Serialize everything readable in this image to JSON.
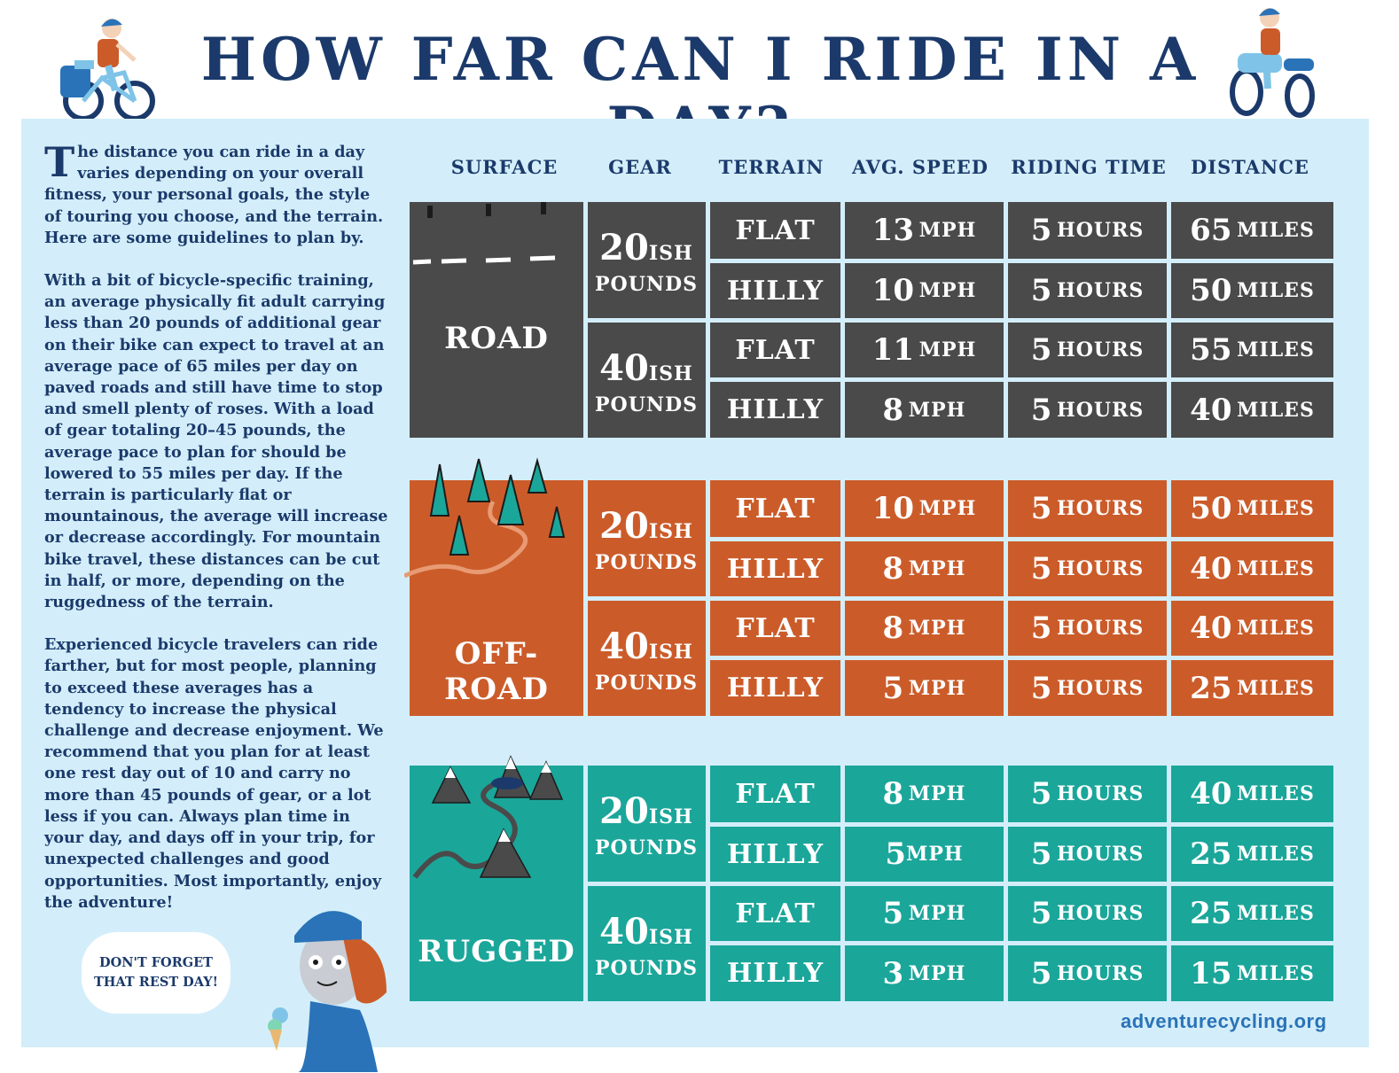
{
  "title": "HOW FAR CAN I RIDE IN A DAY?",
  "intro": {
    "dropcap": "T",
    "p1_rest": "he distance you can ride in a day varies depending on your overall fitness, your personal goals, the style of touring you choose, and the terrain. Here are some guidelines to plan by.",
    "p2": "With a bit of bicycle-specific training, an average physically fit adult carrying less than 20 pounds of additional gear on their bike can expect to travel at an average pace of 65 miles per day on paved roads and still have time to stop and smell plenty of roses. With a load of gear totaling 20–45 pounds, the average pace to plan for should be lowered to 55 miles per day. If the terrain is particularly flat or mountainous, the average will increase or decrease accordingly. For mountain bike travel, these distances can be cut in half, or more, depending on the ruggedness of the terrain.",
    "p3": "Experienced bicycle travelers can ride farther, but for most people, planning to exceed these averages has a tendency to increase the physical challenge and decrease enjoyment. We recommend that you plan for at least one rest day out of 10 and carry no more than 45 pounds of gear, or a lot less if you can. Always plan time in your day, and days off in your trip, for unexpected challenges and good opportunities. Most importantly, enjoy the adventure!"
  },
  "headers": {
    "surface": "SURFACE",
    "gear": "GEAR",
    "terrain": "TERRAIN",
    "speed": "AVG. SPEED",
    "time": "RIDING TIME",
    "distance": "DISTANCE"
  },
  "gear_labels": {
    "g20_num": "20",
    "g20_ish": "ISH",
    "g40_num": "40",
    "g40_ish": "ISH",
    "pounds": "POUNDS"
  },
  "surfaces": [
    {
      "name": "ROAD",
      "rows": [
        {
          "terrain": "FLAT",
          "speed_num": "13",
          "speed_unit": "MPH",
          "time_num": "5",
          "time_unit": "HOURS",
          "dist_num": "65",
          "dist_unit": "MILES"
        },
        {
          "terrain": "HILLY",
          "speed_num": "10",
          "speed_unit": "MPH",
          "time_num": "5",
          "time_unit": "HOURS",
          "dist_num": "50",
          "dist_unit": "MILES"
        },
        {
          "terrain": "FLAT",
          "speed_num": "11",
          "speed_unit": "MPH",
          "time_num": "5",
          "time_unit": "HOURS",
          "dist_num": "55",
          "dist_unit": "MILES"
        },
        {
          "terrain": "HILLY",
          "speed_num": "8",
          "speed_unit": "MPH",
          "time_num": "5",
          "time_unit": "HOURS",
          "dist_num": "40",
          "dist_unit": "MILES"
        }
      ]
    },
    {
      "name": "OFF-ROAD",
      "rows": [
        {
          "terrain": "FLAT",
          "speed_num": "10",
          "speed_unit": "MPH",
          "time_num": "5",
          "time_unit": "HOURS",
          "dist_num": "50",
          "dist_unit": "MILES"
        },
        {
          "terrain": "HILLY",
          "speed_num": "8",
          "speed_unit": "MPH",
          "time_num": "5",
          "time_unit": "HOURS",
          "dist_num": "40",
          "dist_unit": "MILES"
        },
        {
          "terrain": "FLAT",
          "speed_num": "8",
          "speed_unit": "MPH",
          "time_num": "5",
          "time_unit": "HOURS",
          "dist_num": "40",
          "dist_unit": "MILES"
        },
        {
          "terrain": "HILLY",
          "speed_num": "5",
          "speed_unit": "MPH",
          "time_num": "5",
          "time_unit": "HOURS",
          "dist_num": "25",
          "dist_unit": "MILES"
        }
      ]
    },
    {
      "name": "RUGGED",
      "rows": [
        {
          "terrain": "FLAT",
          "speed_num": "8",
          "speed_unit": "MPH",
          "time_num": "5",
          "time_unit": "HOURS",
          "dist_num": "40",
          "dist_unit": "MILES"
        },
        {
          "terrain": "HILLY",
          "speed_num": "5",
          "speed_unit": "MPH",
          "time_num": "5",
          "time_unit": "HOURS",
          "dist_num": "25",
          "dist_unit": "MILES"
        },
        {
          "terrain": "FLAT",
          "speed_num": "5",
          "speed_unit": "MPH",
          "time_num": "5",
          "time_unit": "HOURS",
          "dist_num": "25",
          "dist_unit": "MILES"
        },
        {
          "terrain": "HILLY",
          "speed_num": "3",
          "speed_unit": "MPH",
          "time_num": "5",
          "time_unit": "HOURS",
          "dist_num": "15",
          "dist_unit": "MILES"
        }
      ]
    }
  ],
  "speech_bubble": "DON'T FORGET THAT REST DAY!",
  "website": "adventurecycling.org",
  "colors": {
    "navy": "#1b3a6b",
    "panel": "#d3eefa",
    "road": "#4a4a4b",
    "off_road": "#cb5c2a",
    "rugged": "#1ba69a",
    "link": "#2a73b8"
  }
}
